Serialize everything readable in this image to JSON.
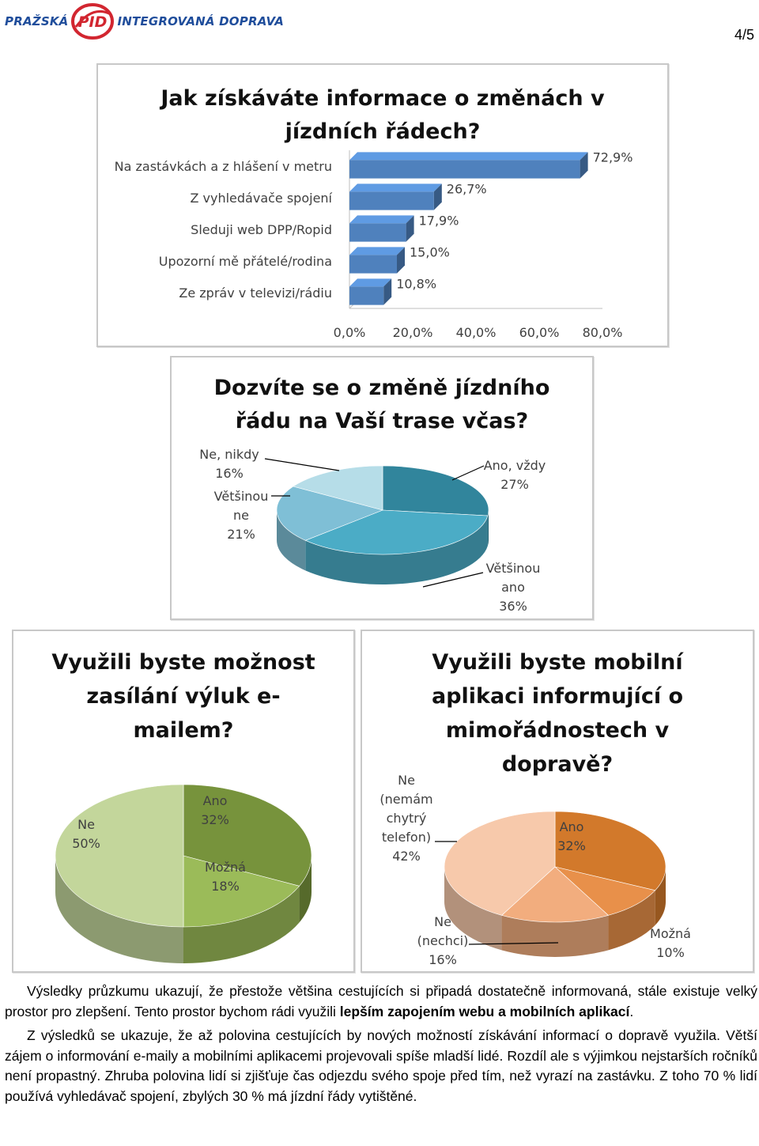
{
  "header": {
    "brand_left": "PRAŽSKÁ",
    "brand_logo": "PID",
    "brand_right": "INTEGROVANÁ DOPRAVA",
    "page_number": "4/5"
  },
  "chart_data": [
    {
      "type": "bar",
      "title": "Jak získáváte informace o změnách v jízdních řádech?",
      "categories": [
        "Na zastávkách a z hlášení v metru",
        "Z vyhledávače spojení",
        "Sleduji web DPP/Ropid",
        "Upozorní mě přátelé/rodina",
        "Ze zpráv v televizi/rádiu"
      ],
      "values": [
        72.9,
        26.7,
        17.9,
        15.0,
        10.8
      ],
      "value_labels": [
        "72,9%",
        "26,7%",
        "17,9%",
        "15,0%",
        "10,8%"
      ],
      "xlim": [
        0,
        80
      ],
      "x_ticks": [
        "0,0%",
        "20,0%",
        "40,0%",
        "60,0%",
        "80,0%"
      ],
      "orientation": "horizontal",
      "color": "#4f81bd"
    },
    {
      "type": "pie",
      "title": "Dozvíte se o změně jízdního řádu na Vaší trase včas?",
      "slices": [
        {
          "name": "Ano, vždy",
          "value": 27,
          "label": "27%",
          "color": "#31859c"
        },
        {
          "name": "Většinou ano",
          "value": 36,
          "label": "36%",
          "color": "#4bacc6"
        },
        {
          "name": "Většinou ne",
          "value": 21,
          "label": "21%",
          "color": "#7fbfd6"
        },
        {
          "name": "Ne, nikdy",
          "value": 16,
          "label": "16%",
          "color": "#b6dde8"
        }
      ]
    },
    {
      "type": "pie",
      "title": "Využili byste možnost zasílání výluk e-mailem?",
      "slices": [
        {
          "name": "Ano",
          "value": 32,
          "label": "32%",
          "color": "#77933c"
        },
        {
          "name": "Možná",
          "value": 18,
          "label": "18%",
          "color": "#9bbb59"
        },
        {
          "name": "Ne",
          "value": 50,
          "label": "50%",
          "color": "#c3d69b"
        }
      ]
    },
    {
      "type": "pie",
      "title": "Využili byste mobilní aplikaci informující o mimořádnostech v dopravě?",
      "slices": [
        {
          "name": "Ano",
          "value": 32,
          "label": "32%",
          "color": "#d2792b"
        },
        {
          "name": "Možná",
          "value": 10,
          "label": "10%",
          "color": "#e8904a"
        },
        {
          "name": "Ne (nechci)",
          "value": 16,
          "label": "16%",
          "color": "#f2ad7e"
        },
        {
          "name": "Ne (nemám chytrý telefon)",
          "value": 42,
          "label": "42%",
          "color": "#f7c9ab"
        }
      ]
    }
  ],
  "chart_text": {
    "c1_title_l1": "Jak získáváte informace o změnách v",
    "c1_title_l2": "jízdních řádech?",
    "c2_title_l1": "Dozvíte se o změně jízdního",
    "c2_title_l2": "řádu na Vaší trase včas?",
    "c2_l_nenikdy_1": "Ne, nikdy",
    "c2_l_vetsinoune_1": "Většinou",
    "c2_l_vetsinoune_2": "ne",
    "c2_l_anovzdy_1": "Ano, vždy",
    "c2_l_vetsinouano_1": "Většinou",
    "c2_l_vetsinouano_2": "ano",
    "c3_title_l1": "Využili byste možnost",
    "c3_title_l2": "zasílání výluk e-",
    "c3_title_l3": "mailem?",
    "c4_title_l1": "Využili byste mobilní",
    "c4_title_l2": "aplikaci informující o",
    "c4_title_l3": "mimořádnostech v",
    "c4_title_l4": "dopravě?",
    "c4_l_nemam_1": "Ne",
    "c4_l_nemam_2": "(nemám",
    "c4_l_nemam_3": "chytrý",
    "c4_l_nemam_4": "telefon)",
    "c4_l_nechci_1": "Ne",
    "c4_l_nechci_2": "(nechci)"
  },
  "text": {
    "p1_a": "Výsledky průzkumu ukazují, že přestože většina cestujících si připadá dostatečně informovaná, stále existuje velký prostor pro zlepšení. Tento prostor bychom rádi využili ",
    "p1_b": "lepším zapojením webu a mobilních aplikací",
    "p1_c": ".",
    "p2": "Z výsledků se ukazuje, že až polovina cestujících by nových možností získávání informací o dopravě využila. Větší zájem o informování e-maily a mobilními aplikacemi projevovali spíše mladší lidé. Rozdíl ale s výjimkou nejstarších ročníků není propastný. Zhruba polovina lidí si zjišťuje čas odjezdu svého spoje před tím, než vyrazí na zastávku. Z toho 70 % lidí používá vyhledávač spojení, zbylých 30 % má jízdní řády vytištěné."
  }
}
